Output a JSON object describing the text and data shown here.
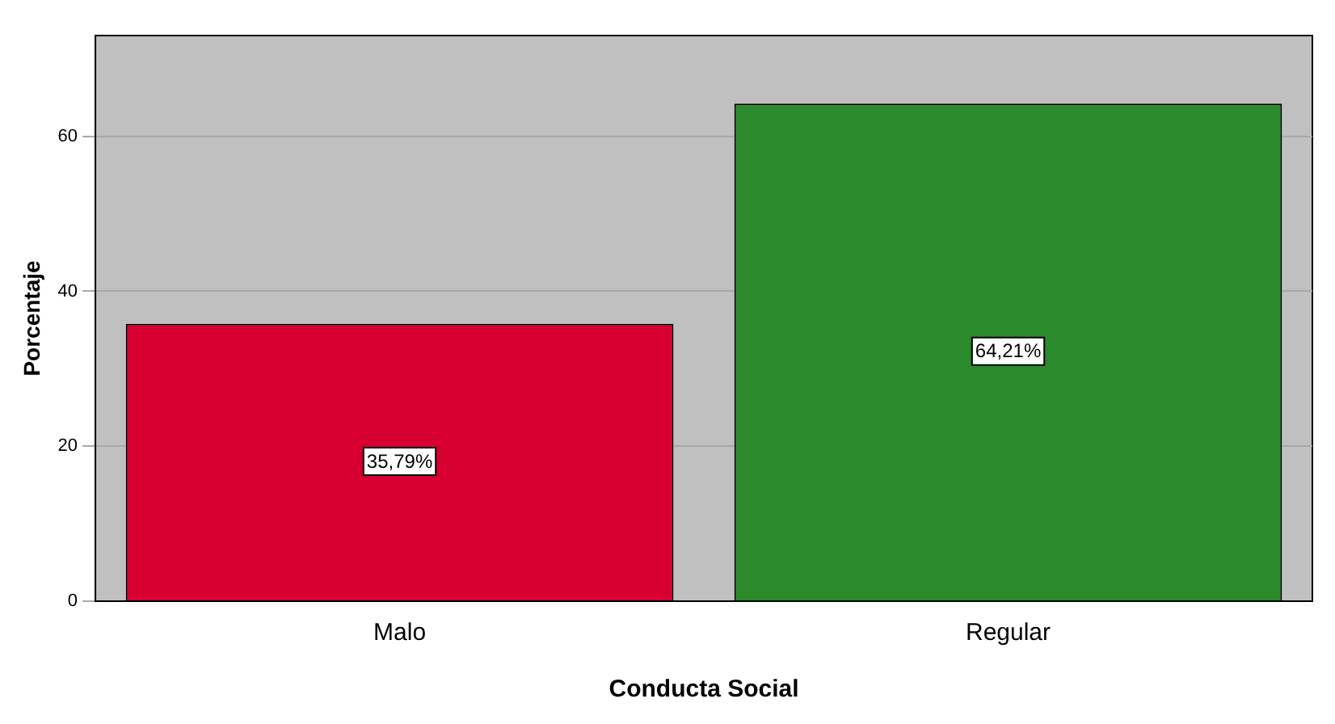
{
  "chart_data": {
    "type": "bar",
    "xlabel": "Conducta Social",
    "ylabel": "Porcentaje",
    "categories": [
      "Malo",
      "Regular"
    ],
    "values": [
      35.79,
      64.21
    ],
    "colors": [
      "#d70030",
      "#2b8a2b"
    ],
    "value_labels": [
      "35,79%",
      "64,21%"
    ],
    "ylim": [
      0,
      73
    ],
    "yticks": [
      0,
      20,
      40,
      60
    ],
    "grid": "y",
    "legend": false
  }
}
